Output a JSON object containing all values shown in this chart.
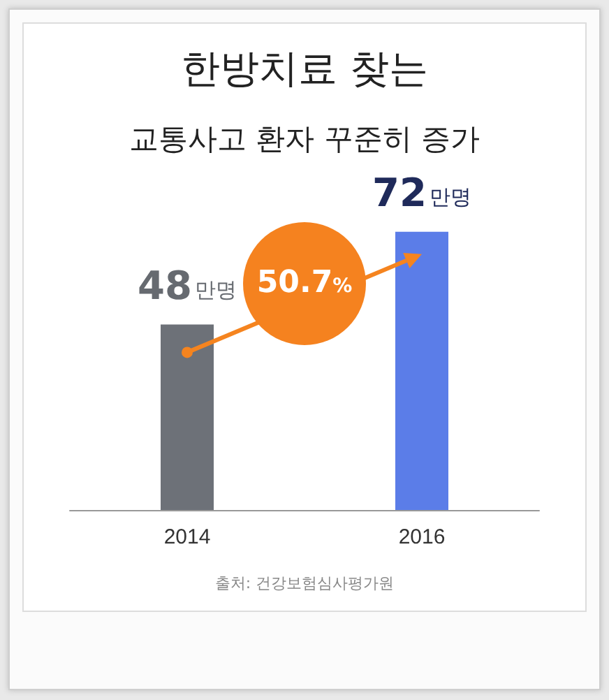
{
  "chart_data": {
    "type": "bar",
    "title": "한방치료 찾는",
    "subtitle": "교통사고 환자 꾸준히 증가",
    "categories": [
      "2014",
      "2016"
    ],
    "values": [
      48,
      72
    ],
    "colors": [
      "#6d7178",
      "#5b7de8"
    ],
    "value_labels": [
      "48만명",
      "72만명"
    ],
    "annotations": [
      "50.7%",
      "출처: 건강보험심사평가원"
    ]
  }
}
